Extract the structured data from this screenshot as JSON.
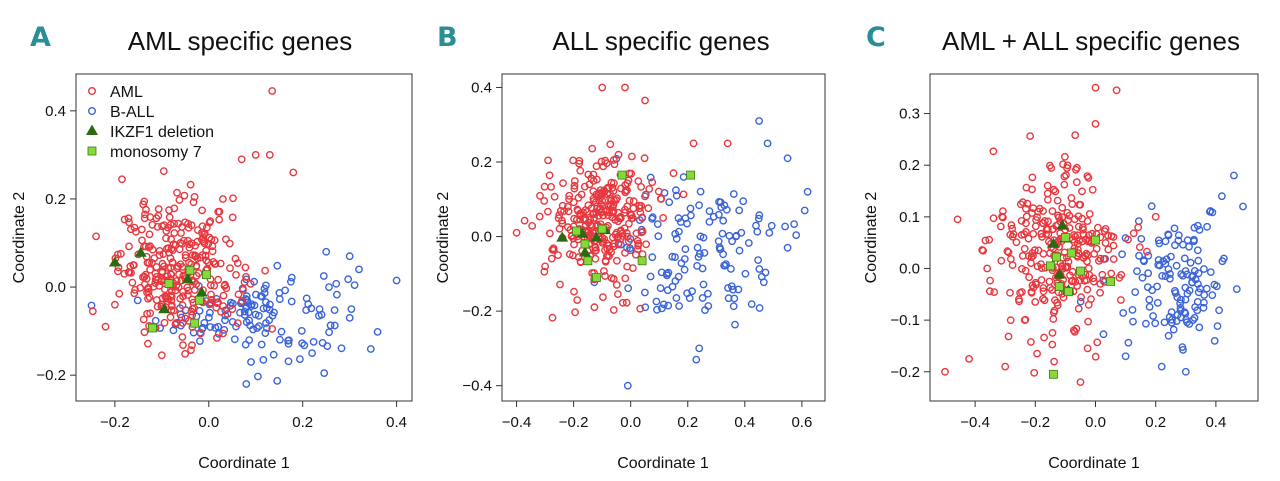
{
  "colors": {
    "aml": "#e8383f",
    "ball": "#3b64d8",
    "ikzf1": "#2b6a12",
    "mono7": "#86d93a",
    "mono7_edge": "#3e7d10",
    "letter": "#2a8e99"
  },
  "legend": [
    "AML",
    "B-ALL",
    "IKZF1 deletion",
    "monosomy 7"
  ],
  "chart_data": [
    {
      "type": "scatter",
      "letter": "A",
      "title": "AML specific genes",
      "xlabel": "Coordinate 1",
      "ylabel": "Coordinate 2",
      "xlim": [
        -0.27,
        0.42
      ],
      "ylim": [
        -0.245,
        0.47
      ],
      "xticks": [
        -0.2,
        0.0,
        0.2,
        0.4
      ],
      "xtick_labels": [
        "−0.2",
        "0.0",
        "0.2",
        "0.4"
      ],
      "yticks": [
        -0.2,
        0.0,
        0.2,
        0.4
      ],
      "ytick_labels": [
        "−0.2",
        "0.0",
        "0.2",
        "0.4"
      ],
      "aml_cluster": {
        "n": 300,
        "center": [
          -0.06,
          0.04
        ],
        "spread": [
          0.065,
          0.075
        ]
      },
      "ball_cluster": {
        "n": 130,
        "center": [
          0.1,
          -0.06
        ],
        "spread": [
          0.1,
          0.05
        ]
      },
      "series": [
        {
          "name": "AML",
          "points": [
            [
              0.135,
              0.445
            ],
            [
              0.13,
              0.3
            ],
            [
              0.1,
              0.3
            ],
            [
              0.07,
              0.29
            ],
            [
              0.18,
              0.26
            ],
            [
              -0.24,
              0.115
            ],
            [
              0.03,
              0.2
            ],
            [
              -0.18,
              0.03
            ],
            [
              -0.22,
              -0.09
            ],
            [
              -0.1,
              -0.155
            ],
            [
              0.05,
              -0.05
            ],
            [
              -0.2,
              -0.04
            ]
          ]
        },
        {
          "name": "B-ALL",
          "points": [
            [
              0.4,
              0.015
            ],
            [
              0.32,
              0.04
            ],
            [
              0.3,
              0.07
            ],
            [
              0.08,
              -0.22
            ],
            [
              0.09,
              -0.17
            ],
            [
              0.25,
              0.08
            ],
            [
              0.3,
              -0.07
            ],
            [
              0.22,
              -0.15
            ]
          ]
        },
        {
          "name": "IKZF1 deletion",
          "points": [
            [
              -0.2,
              0.058
            ],
            [
              -0.145,
              0.08
            ],
            [
              -0.095,
              -0.048
            ],
            [
              -0.045,
              0.02
            ],
            [
              -0.015,
              -0.01
            ]
          ]
        },
        {
          "name": "monosomy 7",
          "points": [
            [
              -0.12,
              -0.093
            ],
            [
              -0.085,
              0.008
            ],
            [
              -0.04,
              0.038
            ],
            [
              -0.005,
              0.028
            ],
            [
              -0.02,
              -0.03
            ],
            [
              -0.03,
              -0.082
            ]
          ]
        }
      ]
    },
    {
      "type": "scatter",
      "letter": "B",
      "title": "ALL specific genes",
      "xlabel": "Coordinate 1",
      "ylabel": "Coordinate 2",
      "xlim": [
        -0.43,
        0.66
      ],
      "ylim": [
        -0.425,
        0.42
      ],
      "xticks": [
        -0.4,
        -0.2,
        0.0,
        0.2,
        0.4,
        0.6
      ],
      "xtick_labels": [
        "−0.4",
        "−0.2",
        "0.0",
        "0.2",
        "0.4",
        "0.6"
      ],
      "yticks": [
        -0.4,
        -0.2,
        0.0,
        0.2,
        0.4
      ],
      "ytick_labels": [
        "−0.4",
        "−0.2",
        "0.0",
        "0.2",
        "0.4"
      ],
      "aml_cluster": {
        "n": 300,
        "center": [
          -0.11,
          0.04
        ],
        "spread": [
          0.09,
          0.09
        ]
      },
      "ball_cluster": {
        "n": 130,
        "center": [
          0.26,
          -0.05
        ],
        "spread": [
          0.14,
          0.09
        ]
      },
      "series": [
        {
          "name": "AML",
          "points": [
            [
              -0.1,
              0.4
            ],
            [
              -0.02,
              0.4
            ],
            [
              0.05,
              0.365
            ],
            [
              -0.4,
              0.01
            ],
            [
              0.22,
              0.25
            ],
            [
              0.34,
              0.25
            ],
            [
              -0.3,
              -0.08
            ],
            [
              0.15,
              0.17
            ]
          ]
        },
        {
          "name": "B-ALL",
          "points": [
            [
              0.45,
              0.31
            ],
            [
              0.48,
              0.25
            ],
            [
              0.55,
              0.21
            ],
            [
              0.62,
              0.12
            ],
            [
              0.61,
              0.07
            ],
            [
              -0.01,
              -0.4
            ],
            [
              0.23,
              -0.33
            ],
            [
              0.24,
              -0.3
            ],
            [
              0.55,
              -0.03
            ]
          ]
        },
        {
          "name": "IKZF1 deletion",
          "points": [
            [
              -0.24,
              0.0
            ],
            [
              -0.17,
              0.01
            ],
            [
              -0.12,
              0.0
            ],
            [
              -0.16,
              -0.04
            ],
            [
              -0.09,
              0.02
            ]
          ]
        },
        {
          "name": "monosomy 7",
          "points": [
            [
              -0.03,
              0.165
            ],
            [
              0.21,
              0.165
            ],
            [
              -0.19,
              0.015
            ],
            [
              -0.15,
              -0.065
            ],
            [
              -0.12,
              -0.11
            ],
            [
              -0.1,
              0.02
            ],
            [
              0.04,
              -0.065
            ],
            [
              -0.16,
              -0.02
            ]
          ]
        }
      ]
    },
    {
      "type": "scatter",
      "letter": "C",
      "title": "AML + ALL specific genes",
      "xlabel": "Coordinate 1",
      "ylabel": "Coordinate 2",
      "xlim": [
        -0.53,
        0.52
      ],
      "ylim": [
        -0.245,
        0.365
      ],
      "xticks": [
        -0.4,
        -0.2,
        0.0,
        0.2,
        0.4
      ],
      "xtick_labels": [
        "−0.4",
        "−0.2",
        "0.0",
        "0.2",
        "0.4"
      ],
      "yticks": [
        -0.2,
        -0.1,
        0.0,
        0.1,
        0.2,
        0.3
      ],
      "ytick_labels": [
        "−0.2",
        "−0.1",
        "0.0",
        "0.1",
        "0.2",
        "0.3"
      ],
      "aml_cluster": {
        "n": 300,
        "center": [
          -0.12,
          0.03
        ],
        "spread": [
          0.1,
          0.085
        ]
      },
      "ball_cluster": {
        "n": 130,
        "center": [
          0.27,
          -0.04
        ],
        "spread": [
          0.09,
          0.065
        ]
      },
      "series": [
        {
          "name": "AML",
          "points": [
            [
              0.0,
              0.35
            ],
            [
              0.07,
              0.345
            ],
            [
              0.0,
              0.28
            ],
            [
              -0.5,
              -0.2
            ],
            [
              -0.42,
              -0.175
            ],
            [
              -0.05,
              -0.22
            ],
            [
              0.2,
              0.1
            ],
            [
              -0.3,
              -0.19
            ],
            [
              -0.36,
              0.0
            ]
          ]
        },
        {
          "name": "B-ALL",
          "points": [
            [
              0.46,
              0.18
            ],
            [
              0.49,
              0.12
            ],
            [
              0.42,
              0.14
            ],
            [
              0.38,
              0.11
            ],
            [
              0.22,
              -0.19
            ],
            [
              0.3,
              -0.2
            ],
            [
              0.1,
              -0.17
            ]
          ]
        },
        {
          "name": "IKZF1 deletion",
          "points": [
            [
              -0.14,
              0.05
            ],
            [
              -0.11,
              0.085
            ],
            [
              -0.12,
              -0.01
            ],
            [
              -0.09,
              -0.04
            ],
            [
              -0.1,
              0.06
            ]
          ]
        },
        {
          "name": "monosomy 7",
          "points": [
            [
              -0.1,
              0.06
            ],
            [
              -0.13,
              0.022
            ],
            [
              -0.15,
              0.005
            ],
            [
              -0.12,
              -0.035
            ],
            [
              -0.09,
              -0.045
            ],
            [
              -0.05,
              -0.005
            ],
            [
              0.0,
              0.055
            ],
            [
              0.05,
              -0.025
            ],
            [
              -0.14,
              -0.205
            ],
            [
              -0.08,
              0.03
            ]
          ]
        }
      ]
    }
  ]
}
